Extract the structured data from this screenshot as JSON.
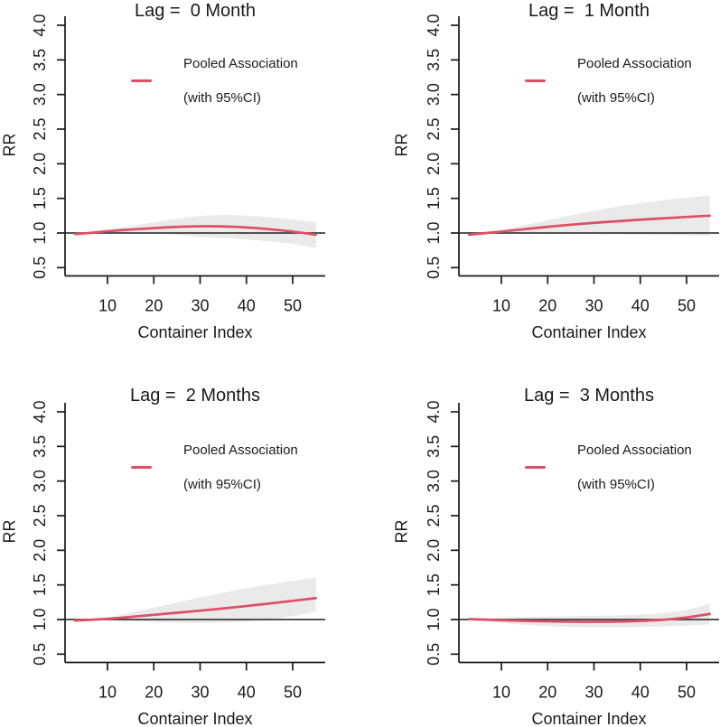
{
  "figure": {
    "background": "#ffffff"
  },
  "colors": {
    "line": "#DE4F66",
    "band": "#EAEAEA",
    "reference_line": "#3D3D3D",
    "axis": "#1A1A1A",
    "text": "#1A1A1A"
  },
  "legend": {
    "label_line1": "Pooled Association",
    "label_line2": "(with 95%CI)"
  },
  "chart_data": [
    {
      "type": "line",
      "title": "Lag =  0 Month",
      "xlabel": "Container Index",
      "ylabel": "RR",
      "xlim": [
        1,
        57
      ],
      "ylim": [
        0.5,
        4.0
      ],
      "grid": false,
      "legend_position": "top-center",
      "reference_line_y": 1.0,
      "xticks": [
        10,
        20,
        30,
        40,
        50
      ],
      "yticks": [
        0.5,
        1.0,
        1.5,
        2.0,
        2.5,
        3.0,
        3.5,
        4.0
      ],
      "x": [
        3,
        6,
        10,
        15,
        20,
        25,
        30,
        35,
        40,
        45,
        50,
        55
      ],
      "series": [
        {
          "name": "Pooled Association",
          "values": [
            0.985,
            1.0,
            1.025,
            1.05,
            1.07,
            1.088,
            1.097,
            1.095,
            1.08,
            1.055,
            1.02,
            0.975
          ]
        },
        {
          "name": "95%CI lower",
          "values": [
            0.965,
            0.982,
            1.0,
            1.005,
            0.998,
            0.972,
            0.945,
            0.925,
            0.905,
            0.878,
            0.843,
            0.785
          ]
        },
        {
          "name": "95%CI upper",
          "values": [
            1.005,
            1.018,
            1.05,
            1.1,
            1.155,
            1.205,
            1.245,
            1.26,
            1.25,
            1.23,
            1.195,
            1.155
          ]
        }
      ]
    },
    {
      "type": "line",
      "title": "Lag =  1 Month",
      "xlabel": "Container Index",
      "ylabel": "RR",
      "xlim": [
        1,
        57
      ],
      "ylim": [
        0.5,
        4.0
      ],
      "grid": false,
      "legend_position": "top-center",
      "reference_line_y": 1.0,
      "xticks": [
        10,
        20,
        30,
        40,
        50
      ],
      "yticks": [
        0.5,
        1.0,
        1.5,
        2.0,
        2.5,
        3.0,
        3.5,
        4.0
      ],
      "x": [
        3,
        6,
        10,
        15,
        20,
        25,
        30,
        35,
        40,
        45,
        50,
        55
      ],
      "series": [
        {
          "name": "Pooled Association",
          "values": [
            0.975,
            0.995,
            1.02,
            1.055,
            1.09,
            1.12,
            1.147,
            1.17,
            1.192,
            1.212,
            1.232,
            1.25
          ]
        },
        {
          "name": "95%CI lower",
          "values": [
            0.955,
            0.978,
            1.0,
            1.002,
            0.997,
            0.99,
            0.985,
            0.98,
            0.975,
            0.97,
            0.965,
            0.96
          ]
        },
        {
          "name": "95%CI upper",
          "values": [
            0.995,
            1.012,
            1.045,
            1.115,
            1.185,
            1.255,
            1.32,
            1.38,
            1.43,
            1.475,
            1.51,
            1.545
          ]
        }
      ]
    },
    {
      "type": "line",
      "title": "Lag =  2 Months",
      "xlabel": "Container Index",
      "ylabel": "RR",
      "xlim": [
        1,
        57
      ],
      "ylim": [
        0.5,
        4.0
      ],
      "grid": false,
      "legend_position": "top-center",
      "reference_line_y": 1.0,
      "xticks": [
        10,
        20,
        30,
        40,
        50
      ],
      "yticks": [
        0.5,
        1.0,
        1.5,
        2.0,
        2.5,
        3.0,
        3.5,
        4.0
      ],
      "x": [
        3,
        6,
        10,
        15,
        20,
        25,
        30,
        35,
        40,
        45,
        50,
        55
      ],
      "series": [
        {
          "name": "Pooled Association",
          "values": [
            0.985,
            0.995,
            1.01,
            1.038,
            1.068,
            1.098,
            1.128,
            1.16,
            1.195,
            1.232,
            1.27,
            1.31
          ]
        },
        {
          "name": "95%CI lower",
          "values": [
            0.968,
            0.98,
            0.99,
            0.977,
            0.962,
            0.952,
            0.95,
            0.955,
            0.972,
            1.0,
            1.05,
            1.115
          ]
        },
        {
          "name": "95%CI upper",
          "values": [
            1.002,
            1.01,
            1.032,
            1.098,
            1.172,
            1.246,
            1.318,
            1.388,
            1.45,
            1.505,
            1.558,
            1.608
          ]
        }
      ]
    },
    {
      "type": "line",
      "title": "Lag =  3 Months",
      "xlabel": "Container Index",
      "ylabel": "RR",
      "xlim": [
        1,
        57
      ],
      "ylim": [
        0.5,
        4.0
      ],
      "grid": false,
      "legend_position": "top-center",
      "reference_line_y": 1.0,
      "xticks": [
        10,
        20,
        30,
        40,
        50
      ],
      "yticks": [
        0.5,
        1.0,
        1.5,
        2.0,
        2.5,
        3.0,
        3.5,
        4.0
      ],
      "x": [
        3,
        6,
        10,
        15,
        20,
        25,
        30,
        35,
        40,
        45,
        50,
        55
      ],
      "series": [
        {
          "name": "Pooled Association",
          "values": [
            1.005,
            1.0,
            0.99,
            0.98,
            0.973,
            0.968,
            0.967,
            0.97,
            0.98,
            0.997,
            1.03,
            1.08
          ]
        },
        {
          "name": "95%CI lower",
          "values": [
            0.985,
            0.975,
            0.95,
            0.925,
            0.906,
            0.894,
            0.888,
            0.888,
            0.893,
            0.9,
            0.913,
            0.93
          ]
        },
        {
          "name": "95%CI upper",
          "values": [
            1.025,
            1.02,
            1.026,
            1.036,
            1.043,
            1.048,
            1.053,
            1.06,
            1.072,
            1.095,
            1.14,
            1.23
          ]
        }
      ]
    }
  ]
}
